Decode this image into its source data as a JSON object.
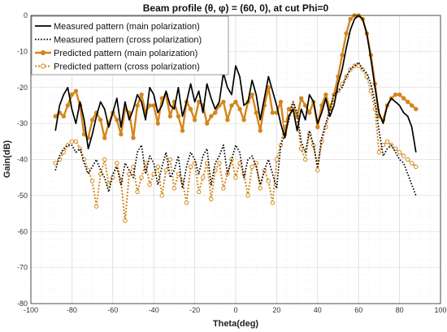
{
  "chart_data": {
    "type": "line",
    "title": "Beam  profile (θ, φ) = (60, 0), at cut Phi=0",
    "xlabel": "Theta(deg)",
    "ylabel": "Gain(dB)",
    "xlim": [
      -100,
      100
    ],
    "ylim": [
      -80,
      0
    ],
    "x_ticks": [
      -100,
      -80,
      -60,
      -40,
      -20,
      0,
      20,
      40,
      60,
      80,
      100
    ],
    "y_ticks": [
      0,
      -10,
      -20,
      -30,
      -40,
      -50,
      -60,
      -70,
      -80
    ],
    "grid": true,
    "minor_grid": true,
    "legend_position": "top-left",
    "series": [
      {
        "name": "Measured pattern (main polarization)",
        "color": "#000000",
        "style": "solid",
        "x": [
          -88,
          -86,
          -84,
          -82,
          -80,
          -78,
          -76,
          -74,
          -72,
          -70,
          -68,
          -66,
          -64,
          -62,
          -60,
          -58,
          -56,
          -54,
          -52,
          -50,
          -48,
          -46,
          -44,
          -42,
          -40,
          -38,
          -36,
          -34,
          -32,
          -30,
          -28,
          -26,
          -24,
          -22,
          -20,
          -18,
          -16,
          -14,
          -12,
          -10,
          -8,
          -6,
          -4,
          -2,
          0,
          2,
          4,
          6,
          8,
          10,
          12,
          14,
          16,
          18,
          20,
          22,
          24,
          26,
          28,
          30,
          32,
          34,
          36,
          38,
          40,
          42,
          44,
          46,
          48,
          50,
          52,
          54,
          56,
          58,
          60,
          62,
          64,
          66,
          68,
          70,
          72,
          74,
          76,
          78,
          80,
          82,
          84,
          86,
          88
        ],
        "y": [
          -32,
          -25,
          -22,
          -20,
          -26,
          -30,
          -24,
          -29,
          -37,
          -33,
          -28,
          -24,
          -26,
          -31,
          -27,
          -23,
          -31,
          -24,
          -29,
          -26,
          -22,
          -24,
          -29,
          -20,
          -22,
          -27,
          -25,
          -21,
          -25,
          -26,
          -20,
          -28,
          -24,
          -19,
          -24,
          -21,
          -27,
          -19,
          -23,
          -26,
          -24,
          -16,
          -20,
          -22,
          -14,
          -17,
          -25,
          -24,
          -18,
          -22,
          -29,
          -23,
          -17,
          -21,
          -25,
          -30,
          -34,
          -28,
          -26,
          -32,
          -26,
          -29,
          -22,
          -24,
          -30,
          -27,
          -23,
          -28,
          -25,
          -19,
          -15,
          -9,
          -4,
          -1,
          0,
          -1,
          -5,
          -12,
          -20,
          -27,
          -30,
          -25,
          -23,
          -24,
          -25,
          -27,
          -28,
          -31,
          -38
        ]
      },
      {
        "name": "Measured pattern (cross polarization)",
        "color": "#000000",
        "style": "dotted",
        "x": [
          -88,
          -86,
          -84,
          -82,
          -80,
          -78,
          -76,
          -74,
          -72,
          -70,
          -68,
          -66,
          -64,
          -62,
          -60,
          -58,
          -56,
          -54,
          -52,
          -50,
          -48,
          -46,
          -44,
          -42,
          -40,
          -38,
          -36,
          -34,
          -32,
          -30,
          -28,
          -26,
          -24,
          -22,
          -20,
          -18,
          -16,
          -14,
          -12,
          -10,
          -8,
          -6,
          -4,
          -2,
          0,
          2,
          4,
          6,
          8,
          10,
          12,
          14,
          16,
          18,
          20,
          22,
          24,
          26,
          28,
          30,
          32,
          34,
          36,
          38,
          40,
          42,
          44,
          46,
          48,
          50,
          52,
          54,
          56,
          58,
          60,
          62,
          64,
          66,
          68,
          70,
          72,
          74,
          76,
          78,
          80,
          82,
          84,
          86,
          88
        ],
        "y": [
          -43,
          -39,
          -37,
          -36,
          -36,
          -38,
          -37,
          -41,
          -44,
          -42,
          -40,
          -43,
          -45,
          -49,
          -44,
          -42,
          -47,
          -41,
          -43,
          -45,
          -38,
          -36,
          -44,
          -39,
          -41,
          -47,
          -42,
          -38,
          -45,
          -43,
          -39,
          -48,
          -42,
          -38,
          -40,
          -44,
          -39,
          -37,
          -47,
          -41,
          -39,
          -36,
          -44,
          -40,
          -36,
          -38,
          -45,
          -40,
          -39,
          -42,
          -47,
          -43,
          -40,
          -44,
          -48,
          -36,
          -33,
          -29,
          -24,
          -27,
          -35,
          -38,
          -32,
          -36,
          -42,
          -34,
          -30,
          -26,
          -22,
          -21,
          -20,
          -17,
          -15,
          -14,
          -13,
          -15,
          -16,
          -19,
          -24,
          -32,
          -39,
          -37,
          -36,
          -38,
          -40,
          -41,
          -44,
          -47,
          -50
        ]
      },
      {
        "name": "Predicted pattern (main polarization)",
        "color": "#d4861c",
        "style": "solid-marker",
        "x": [
          -88,
          -86,
          -84,
          -82,
          -80,
          -78,
          -76,
          -74,
          -72,
          -70,
          -68,
          -66,
          -64,
          -62,
          -60,
          -58,
          -56,
          -54,
          -52,
          -50,
          -48,
          -46,
          -44,
          -42,
          -40,
          -38,
          -36,
          -34,
          -32,
          -30,
          -28,
          -26,
          -24,
          -22,
          -20,
          -18,
          -16,
          -14,
          -12,
          -10,
          -8,
          -6,
          -4,
          -2,
          0,
          2,
          4,
          6,
          8,
          10,
          12,
          14,
          16,
          18,
          20,
          22,
          24,
          26,
          28,
          30,
          32,
          34,
          36,
          38,
          40,
          42,
          44,
          46,
          48,
          50,
          52,
          54,
          56,
          58,
          60,
          62,
          64,
          66,
          68,
          70,
          72,
          74,
          76,
          78,
          80,
          82,
          84,
          86,
          88
        ],
        "y": [
          -28,
          -27,
          -28,
          -25,
          -22,
          -21,
          -25,
          -33,
          -34,
          -29,
          -27,
          -29,
          -34,
          -30,
          -27,
          -29,
          -33,
          -26,
          -27,
          -34,
          -25,
          -22,
          -27,
          -25,
          -25,
          -30,
          -23,
          -22,
          -28,
          -24,
          -28,
          -32,
          -24,
          -26,
          -29,
          -24,
          -25,
          -30,
          -28,
          -27,
          -25,
          -24,
          -29,
          -25,
          -24,
          -26,
          -29,
          -24,
          -22,
          -27,
          -32,
          -25,
          -20,
          -27,
          -27,
          -24,
          -33,
          -26,
          -25,
          -28,
          -23,
          -25,
          -27,
          -24,
          -31,
          -25,
          -22,
          -26,
          -22,
          -17,
          -11,
          -5,
          -1,
          0,
          0,
          -1,
          -5,
          -11,
          -19,
          -28,
          -29,
          -25,
          -23,
          -22,
          -22,
          -23,
          -24,
          -25,
          -26
        ]
      },
      {
        "name": "Predicted pattern (cross polarization)",
        "color": "#d4861c",
        "style": "dotted-marker",
        "x": [
          -88,
          -86,
          -84,
          -82,
          -80,
          -78,
          -76,
          -74,
          -72,
          -70,
          -68,
          -66,
          -64,
          -62,
          -60,
          -58,
          -56,
          -54,
          -52,
          -50,
          -48,
          -46,
          -44,
          -42,
          -40,
          -38,
          -36,
          -34,
          -32,
          -30,
          -28,
          -26,
          -24,
          -22,
          -20,
          -18,
          -16,
          -14,
          -12,
          -10,
          -8,
          -6,
          -4,
          -2,
          0,
          2,
          4,
          6,
          8,
          10,
          12,
          14,
          16,
          18,
          20,
          22,
          24,
          26,
          28,
          30,
          32,
          34,
          36,
          38,
          40,
          42,
          44,
          46,
          48,
          50,
          52,
          54,
          56,
          58,
          60,
          62,
          64,
          66,
          68,
          70,
          72,
          74,
          76,
          78,
          80,
          82,
          84,
          86,
          88
        ],
        "y": [
          -41,
          -40,
          -38,
          -36,
          -35,
          -35,
          -37,
          -40,
          -43,
          -46,
          -53,
          -44,
          -40,
          -47,
          -45,
          -41,
          -46,
          -57,
          -44,
          -42,
          -49,
          -45,
          -41,
          -47,
          -44,
          -42,
          -50,
          -43,
          -40,
          -48,
          -44,
          -46,
          -52,
          -42,
          -41,
          -49,
          -45,
          -41,
          -51,
          -43,
          -41,
          -48,
          -44,
          -40,
          -45,
          -41,
          -44,
          -50,
          -42,
          -41,
          -48,
          -43,
          -46,
          -52,
          -40,
          -36,
          -30,
          -27,
          -25,
          -29,
          -37,
          -40,
          -33,
          -36,
          -43,
          -35,
          -31,
          -27,
          -23,
          -21,
          -19,
          -17,
          -15,
          -14,
          -14,
          -15,
          -17,
          -21,
          -26,
          -38,
          -36,
          -35,
          -36,
          -37,
          -38,
          -39,
          -40,
          -41,
          -42
        ]
      }
    ]
  }
}
